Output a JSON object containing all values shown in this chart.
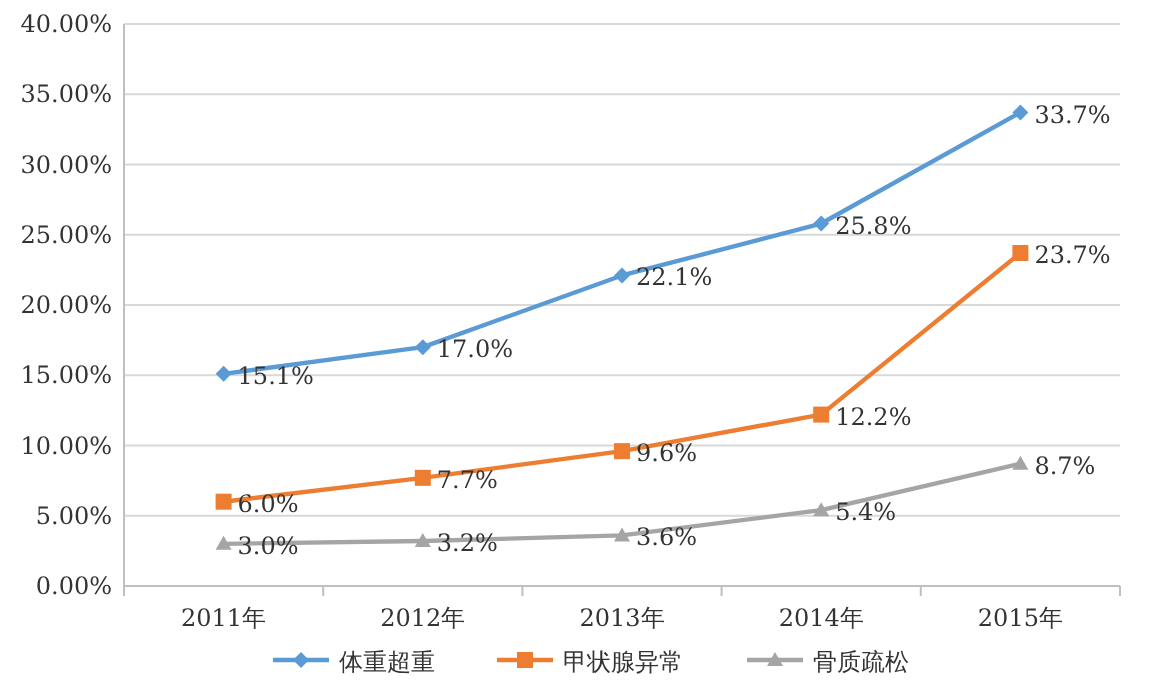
{
  "chart_data": {
    "type": "line",
    "categories": [
      "2011年",
      "2012年",
      "2013年",
      "2014年",
      "2015年"
    ],
    "series": [
      {
        "name": "体重超重",
        "color": "#5b9bd5",
        "marker": "diamond",
        "values": [
          15.1,
          17.0,
          22.1,
          25.8,
          33.7
        ],
        "value_labels": [
          "15.1%",
          "17.0%",
          "22.1%",
          "25.8%",
          "33.7%"
        ]
      },
      {
        "name": "甲状腺异常",
        "color": "#ed7d31",
        "marker": "square",
        "values": [
          6.0,
          7.7,
          9.6,
          12.2,
          23.7
        ],
        "value_labels": [
          "6.0%",
          "7.7%",
          "9.6%",
          "12.2%",
          "23.7%"
        ]
      },
      {
        "name": "骨质疏松",
        "color": "#a5a5a5",
        "marker": "triangle",
        "values": [
          3.0,
          3.2,
          3.6,
          5.4,
          8.7
        ],
        "value_labels": [
          "3.0%",
          "3.2%",
          "3.6%",
          "5.4%",
          "8.7%"
        ]
      }
    ],
    "ylim": [
      0,
      40
    ],
    "yticks": [
      {
        "value": 0,
        "label": "0.00%"
      },
      {
        "value": 5,
        "label": "5.00%"
      },
      {
        "value": 10,
        "label": "10.00%"
      },
      {
        "value": 15,
        "label": "15.00%"
      },
      {
        "value": 20,
        "label": "20.00%"
      },
      {
        "value": 25,
        "label": "25.00%"
      },
      {
        "value": 30,
        "label": "30.00%"
      },
      {
        "value": 35,
        "label": "35.00%"
      },
      {
        "value": 40,
        "label": "40.00%"
      }
    ],
    "grid": "y",
    "legend": "bottom"
  }
}
